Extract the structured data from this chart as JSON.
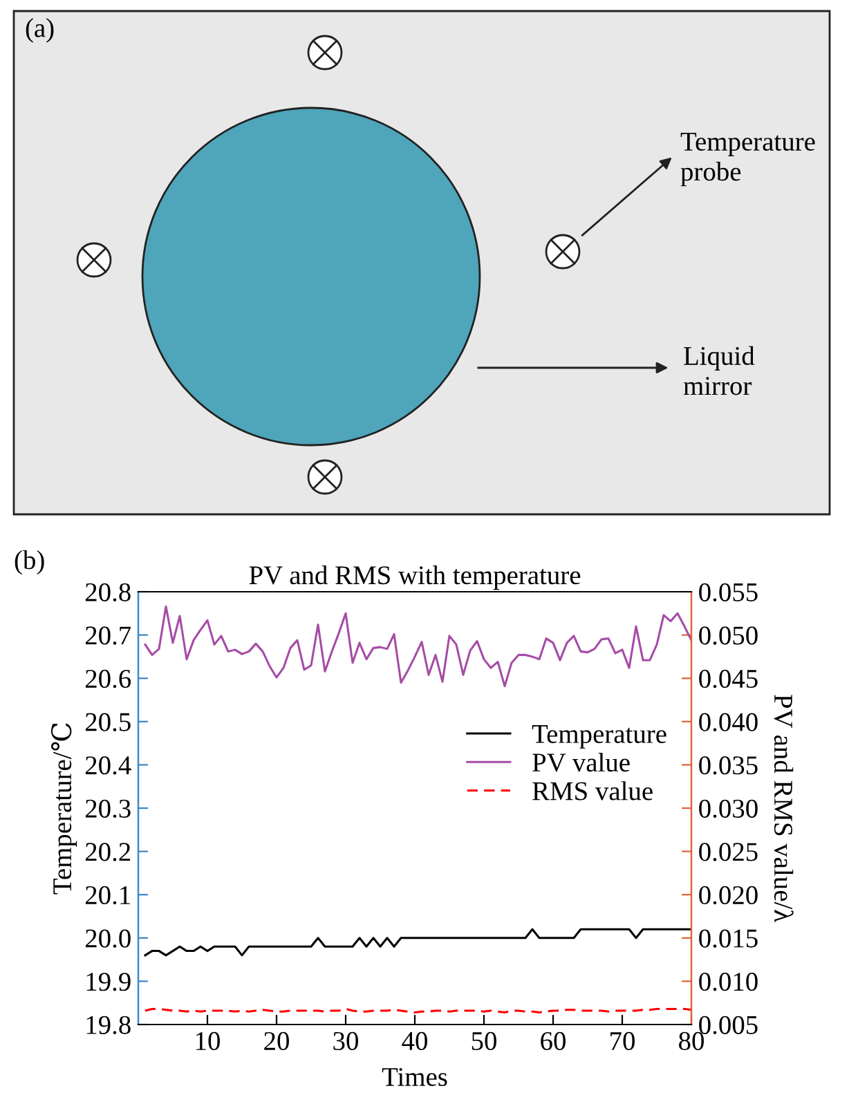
{
  "chart_data": [
    {
      "type": "other",
      "annotations": [
        "(a)",
        "Temperature\nprobe",
        "Liquid\nmirror"
      ]
    },
    {
      "type": "line",
      "title": "PV and RMS with temperature",
      "xlabel": "Times",
      "ylabel": "Temperature/℃",
      "y2label": "PV and RMS value/λ",
      "annotations": [
        "(b)"
      ],
      "x": [
        1,
        2,
        3,
        4,
        5,
        6,
        7,
        8,
        9,
        10,
        11,
        12,
        13,
        14,
        15,
        16,
        17,
        18,
        19,
        20,
        21,
        22,
        23,
        24,
        25,
        26,
        27,
        28,
        29,
        30,
        31,
        32,
        33,
        34,
        35,
        36,
        37,
        38,
        39,
        40,
        41,
        42,
        43,
        44,
        45,
        46,
        47,
        48,
        49,
        50,
        51,
        52,
        53,
        54,
        55,
        56,
        57,
        58,
        59,
        60,
        61,
        62,
        63,
        64,
        65,
        66,
        67,
        68,
        69,
        70,
        71,
        72,
        73,
        74,
        75,
        76,
        77,
        78,
        79,
        80
      ],
      "xlim": [
        0,
        80
      ],
      "xticks": [
        10,
        20,
        30,
        40,
        50,
        60,
        70,
        80
      ],
      "ylim": [
        19.8,
        20.8
      ],
      "yticks": [
        19.8,
        19.9,
        {
          "value": 20.0,
          "label": "20.0"
        },
        20.1,
        20.2,
        20.3,
        20.4,
        20.5,
        20.6,
        20.7,
        20.8
      ],
      "y2lim": [
        0.005,
        0.055
      ],
      "y2ticks": [
        0.005,
        {
          "value": 0.01,
          "label": "0.010"
        },
        0.015,
        {
          "value": 0.02,
          "label": "0.020"
        },
        0.025,
        {
          "value": 0.03,
          "label": "0.030"
        },
        0.035,
        {
          "value": 0.04,
          "label": "0.040"
        },
        0.045,
        {
          "value": 0.05,
          "label": "0.050"
        },
        0.055
      ],
      "grid": false,
      "legend": "right",
      "series": [
        {
          "name": "Temperature",
          "color": "#000000",
          "line_style": "solid",
          "values": [
            19.96,
            19.97,
            19.97,
            19.96,
            19.97,
            19.98,
            19.97,
            19.97,
            19.98,
            19.97,
            19.98,
            19.98,
            19.98,
            19.98,
            19.96,
            19.98,
            19.98,
            19.98,
            19.98,
            19.98,
            19.98,
            19.98,
            19.98,
            19.98,
            19.98,
            20.0,
            19.98,
            19.98,
            19.98,
            19.98,
            19.98,
            20.0,
            19.98,
            20.0,
            19.98,
            20.0,
            19.98,
            20.0,
            20.0,
            20.0,
            20.0,
            20.0,
            20.0,
            20.0,
            20.0,
            20.0,
            20.0,
            20.0,
            20.0,
            20.0,
            20.0,
            20.0,
            20.0,
            20.0,
            20.0,
            20.0,
            20.02,
            20.0,
            20.0,
            20.0,
            20.0,
            20.0,
            20.0,
            20.02,
            20.02,
            20.02,
            20.02,
            20.02,
            20.02,
            20.02,
            20.02,
            20.0,
            20.02,
            20.02,
            20.02,
            20.02,
            20.02,
            20.02,
            20.02,
            20.02
          ]
        },
        {
          "name": "PV value",
          "color": "#a64ca6",
          "line_style": "solid",
          "axis": "y2",
          "values": [
            0.0489,
            0.0477,
            0.0484,
            0.0533,
            0.0491,
            0.0522,
            0.0472,
            0.0494,
            0.0506,
            0.0517,
            0.0489,
            0.0499,
            0.0481,
            0.0483,
            0.0478,
            0.0481,
            0.049,
            0.0481,
            0.0464,
            0.0451,
            0.0462,
            0.0485,
            0.0494,
            0.046,
            0.0465,
            0.0512,
            0.0458,
            0.0481,
            0.0502,
            0.0525,
            0.0468,
            0.0491,
            0.0472,
            0.0485,
            0.0486,
            0.0484,
            0.0501,
            0.0445,
            0.0459,
            0.0475,
            0.0492,
            0.0454,
            0.0477,
            0.0446,
            0.0499,
            0.0489,
            0.0454,
            0.0482,
            0.0493,
            0.0472,
            0.0462,
            0.0469,
            0.0441,
            0.0468,
            0.0477,
            0.0477,
            0.0475,
            0.0472,
            0.0496,
            0.0491,
            0.0471,
            0.0491,
            0.0499,
            0.0481,
            0.048,
            0.0484,
            0.0495,
            0.0496,
            0.0479,
            0.0483,
            0.0462,
            0.051,
            0.0471,
            0.0471,
            0.0489,
            0.0523,
            0.0516,
            0.0525,
            0.051,
            0.0494
          ]
        },
        {
          "name": "RMS value",
          "color": "#ff0000",
          "line_style": "dashed",
          "axis": "y2",
          "values": [
            0.0066,
            0.0068,
            0.0068,
            0.0067,
            0.0066,
            0.0066,
            0.0065,
            0.0066,
            0.0065,
            0.0066,
            0.0066,
            0.0066,
            0.0066,
            0.0065,
            0.0066,
            0.0065,
            0.0066,
            0.0067,
            0.0066,
            0.0065,
            0.0065,
            0.0066,
            0.0066,
            0.0066,
            0.0066,
            0.0066,
            0.0065,
            0.0066,
            0.0066,
            0.0068,
            0.0066,
            0.0065,
            0.0065,
            0.0066,
            0.0066,
            0.0066,
            0.0067,
            0.0066,
            0.0065,
            0.0064,
            0.0065,
            0.0065,
            0.0066,
            0.0066,
            0.0065,
            0.0066,
            0.0066,
            0.0066,
            0.0066,
            0.0065,
            0.0066,
            0.0065,
            0.0064,
            0.0066,
            0.0066,
            0.0065,
            0.0065,
            0.0064,
            0.0065,
            0.0066,
            0.0066,
            0.0067,
            0.0067,
            0.0066,
            0.0066,
            0.0066,
            0.0066,
            0.0065,
            0.0066,
            0.0066,
            0.0066,
            0.0066,
            0.0067,
            0.0067,
            0.0068,
            0.0068,
            0.0068,
            0.0068,
            0.0068,
            0.0067
          ]
        }
      ]
    }
  ]
}
